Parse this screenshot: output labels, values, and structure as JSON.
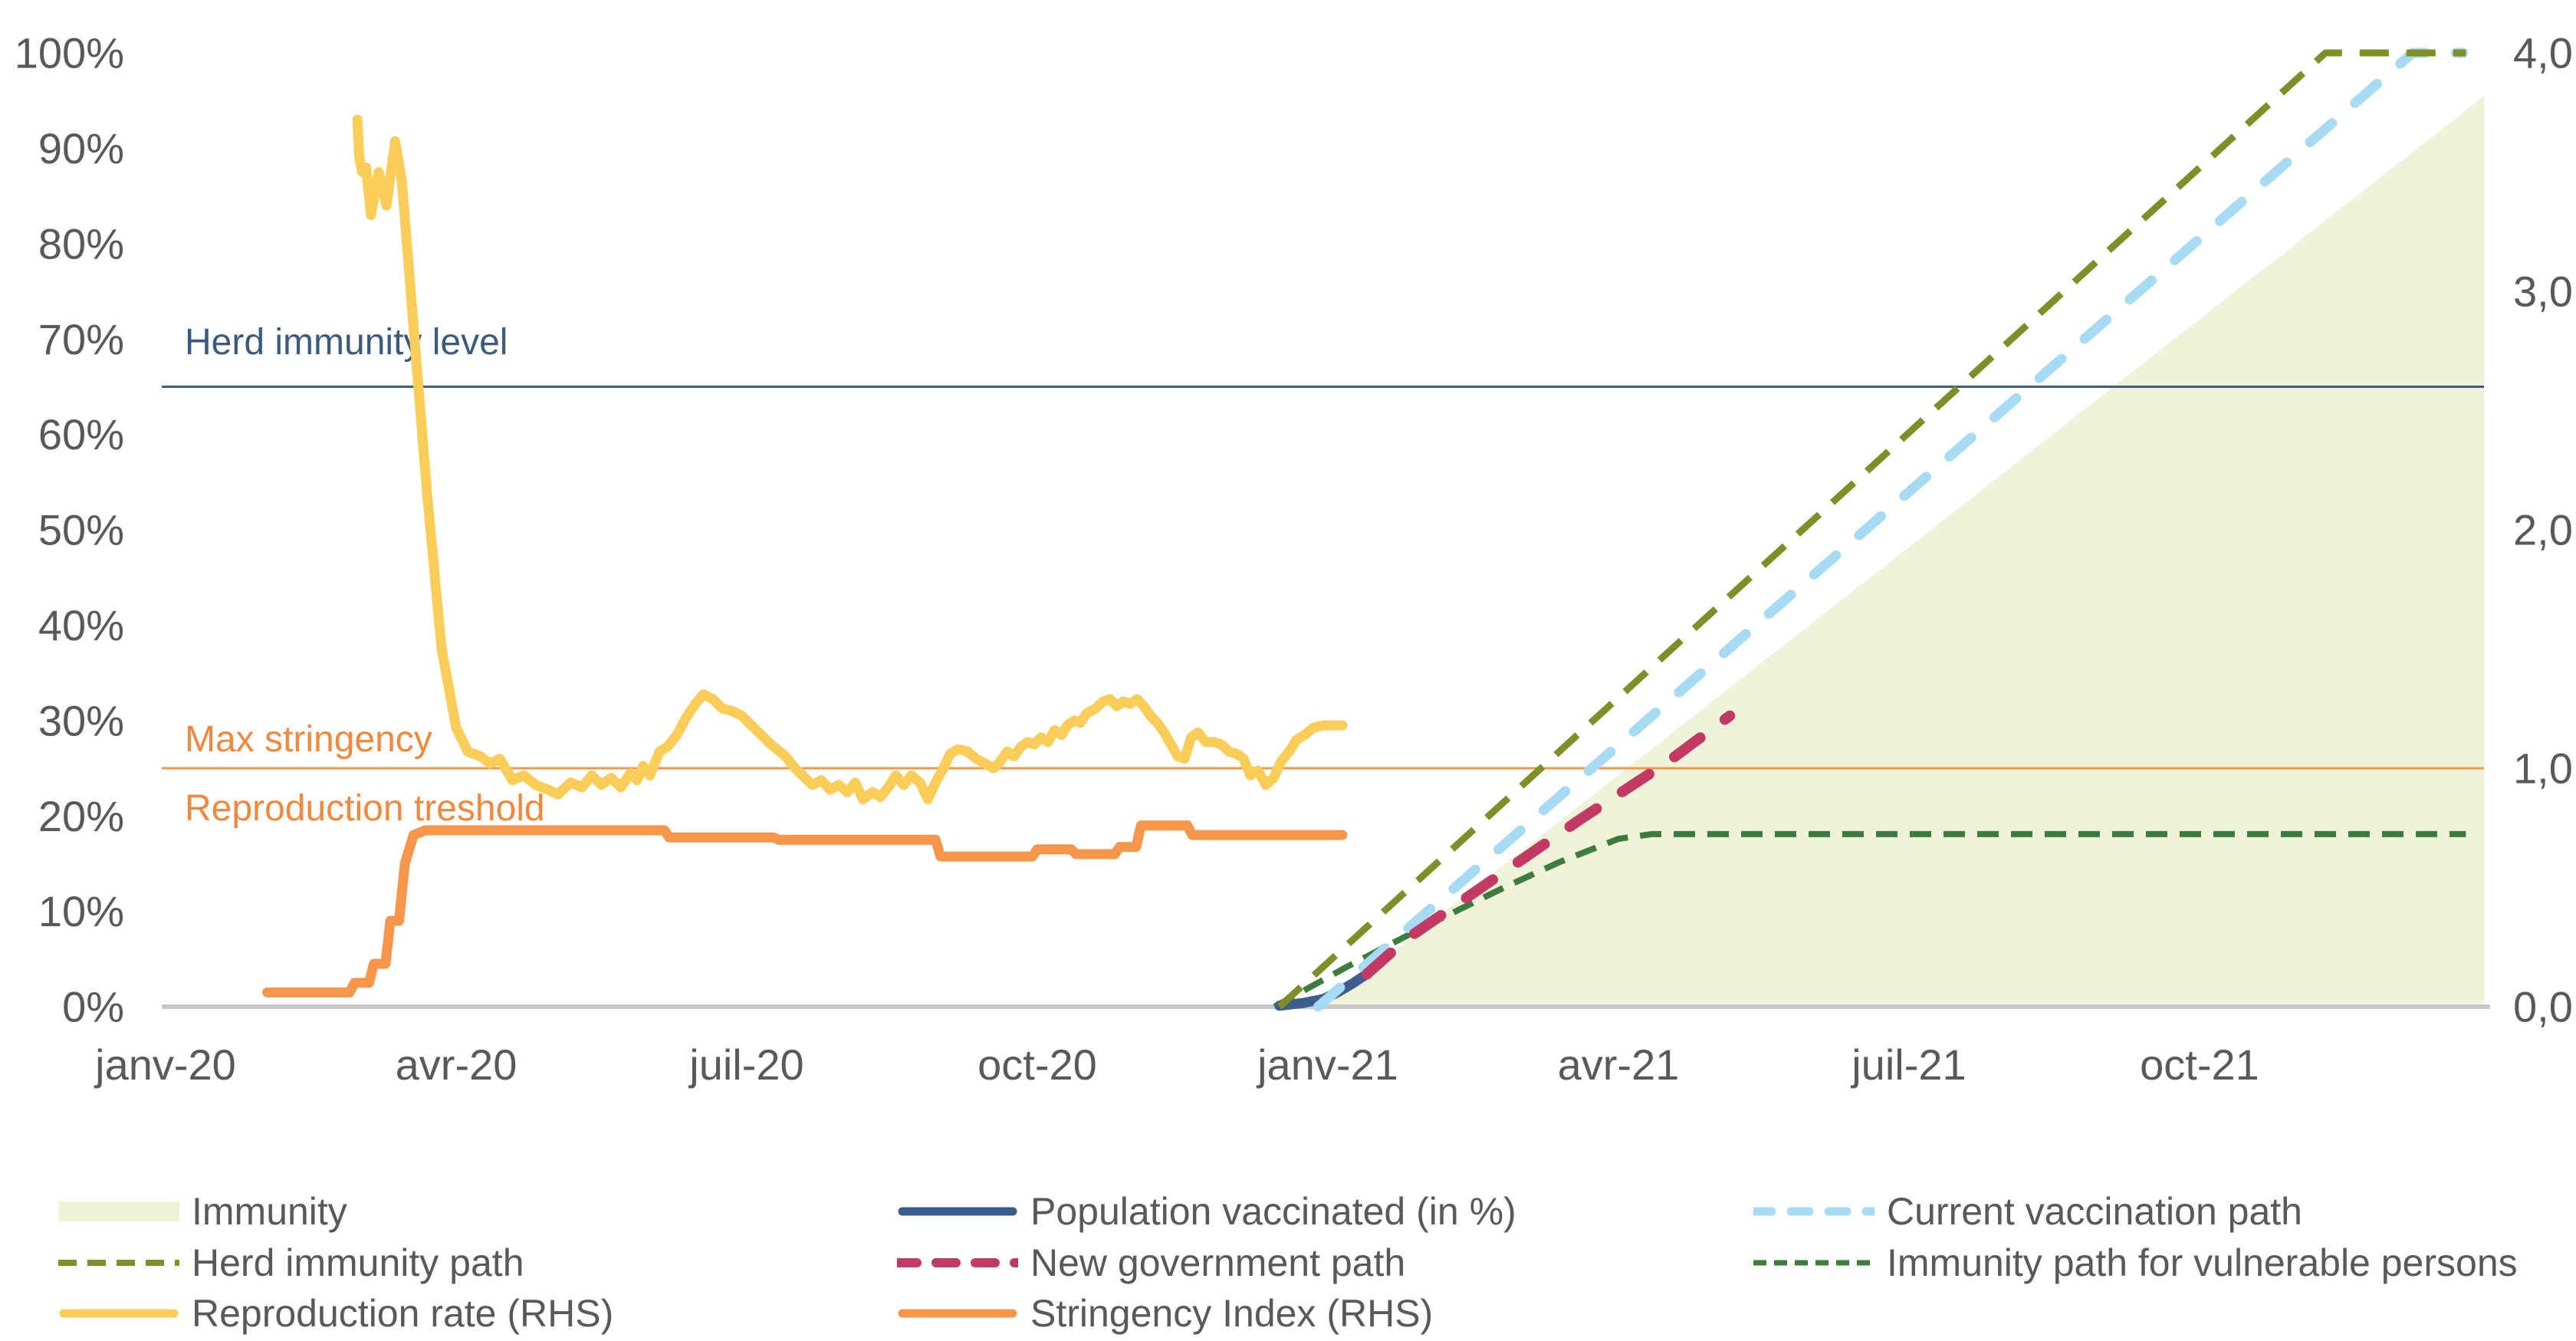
{
  "chart_data": {
    "type": "line",
    "title": "",
    "x_axis": {
      "labels": [
        "janv-20",
        "avr-20",
        "juil-20",
        "oct-20",
        "janv-21",
        "avr-21",
        "juil-21",
        "oct-21"
      ],
      "tick_months": [
        0,
        3,
        6,
        9,
        12,
        15,
        18,
        21
      ],
      "range_months": [
        0,
        24
      ]
    },
    "y_left": {
      "labels": [
        "0%",
        "10%",
        "20%",
        "30%",
        "40%",
        "50%",
        "60%",
        "70%",
        "80%",
        "90%",
        "100%"
      ],
      "values": [
        0,
        10,
        20,
        30,
        40,
        50,
        60,
        70,
        80,
        90,
        100
      ],
      "range": [
        0,
        100
      ]
    },
    "y_right": {
      "labels": [
        "0,0",
        "1,0",
        "2,0",
        "3,0",
        "4,0"
      ],
      "values": [
        0,
        1,
        2,
        3,
        4
      ],
      "range": [
        0,
        4
      ]
    },
    "grid": "off",
    "legend_position": "bottom",
    "axis_text_color": "#595959",
    "baseline_color": "#c8c8c8",
    "reference_lines": [
      {
        "id": "herd-level",
        "axis": "left",
        "value": 65,
        "color": "#3a5a7e",
        "width": 3
      },
      {
        "id": "threshold",
        "axis": "right",
        "value": 1.0,
        "color": "#f6964b",
        "width": 3
      }
    ],
    "annotations": [
      {
        "id": "herd-level-label",
        "text": "Herd immunity level",
        "color": "#3a5a7e"
      },
      {
        "id": "max-stringency-label",
        "text": "Max stringency",
        "color": "#f0883e"
      },
      {
        "id": "reproduction-threshold-label",
        "text": "Reproduction treshold",
        "color": "#f0883e"
      }
    ],
    "series": [
      {
        "id": "immunity",
        "name": "Immunity",
        "type": "area",
        "axis": "left",
        "color": "#f0f3d9",
        "points": [
          [
            11.95,
            0
          ],
          [
            23.94,
            95.5
          ]
        ]
      },
      {
        "id": "vulnerable_path",
        "name": "Immunity path for vulnerable persons",
        "type": "line",
        "axis": "left",
        "color": "#3d7c3d",
        "width": 8,
        "dash": [
          28,
          16
        ],
        "linecap": "butt",
        "points": [
          [
            11.45,
            0
          ],
          [
            12.2,
            4.2
          ],
          [
            13.0,
            8.4
          ],
          [
            13.8,
            12.4
          ],
          [
            14.4,
            15.2
          ],
          [
            15.0,
            17.6
          ],
          [
            15.35,
            18.1
          ],
          [
            23.75,
            18.1
          ]
        ]
      },
      {
        "id": "pop_vaccinated",
        "name": "Population vaccinated (in %)",
        "type": "line",
        "axis": "left",
        "color": "#3d5e8c",
        "width": 13,
        "dash": null,
        "linecap": "round",
        "points": [
          [
            11.5,
            0.1
          ],
          [
            11.75,
            0.4
          ],
          [
            11.95,
            0.8
          ],
          [
            12.1,
            1.5
          ],
          [
            12.25,
            2.4
          ],
          [
            12.4,
            3.4
          ]
        ]
      },
      {
        "id": "current_path",
        "name": "Current vaccination path",
        "type": "line",
        "axis": "left",
        "color": "#a7daf5",
        "width": 13,
        "dash": [
          38,
          40
        ],
        "linecap": "round",
        "points": [
          [
            11.9,
            0
          ],
          [
            23.2,
            100
          ],
          [
            23.72,
            100
          ]
        ]
      },
      {
        "id": "gov_path",
        "name": "New government path",
        "type": "line",
        "axis": "left",
        "color": "#c23a64",
        "width": 14,
        "dash": [
          42,
          40
        ],
        "linecap": "round",
        "points": [
          [
            12.4,
            3.4
          ],
          [
            12.8,
            7.0
          ],
          [
            13.6,
            12.6
          ],
          [
            14.6,
            19.6
          ],
          [
            15.5,
            25.6
          ],
          [
            16.15,
            30.5
          ]
        ]
      },
      {
        "id": "herd_path",
        "name": "Herd immunity path",
        "type": "line",
        "axis": "left",
        "color": "#7f8e26",
        "width": 9,
        "dash": [
          38,
          23
        ],
        "linecap": "butt",
        "points": [
          [
            11.5,
            0
          ],
          [
            22.3,
            100
          ],
          [
            23.75,
            100
          ]
        ]
      },
      {
        "id": "stringency",
        "name": "Stringency Index (RHS)",
        "type": "line",
        "axis": "right",
        "color": "#f6964b",
        "width": 13,
        "dash": null,
        "linecap": "round",
        "points": [
          [
            1.05,
            0.06
          ],
          [
            1.9,
            0.06
          ],
          [
            1.95,
            0.1
          ],
          [
            2.1,
            0.1
          ],
          [
            2.15,
            0.18
          ],
          [
            2.27,
            0.18
          ],
          [
            2.32,
            0.36
          ],
          [
            2.41,
            0.36
          ],
          [
            2.47,
            0.6
          ],
          [
            2.56,
            0.72
          ],
          [
            2.68,
            0.74
          ],
          [
            5.15,
            0.74
          ],
          [
            5.2,
            0.71
          ],
          [
            6.28,
            0.71
          ],
          [
            6.33,
            0.7
          ],
          [
            7.95,
            0.7
          ],
          [
            8.0,
            0.63
          ],
          [
            8.95,
            0.63
          ],
          [
            9.0,
            0.66
          ],
          [
            9.35,
            0.66
          ],
          [
            9.4,
            0.64
          ],
          [
            9.8,
            0.64
          ],
          [
            9.85,
            0.67
          ],
          [
            10.02,
            0.67
          ],
          [
            10.07,
            0.76
          ],
          [
            10.55,
            0.76
          ],
          [
            10.6,
            0.72
          ],
          [
            12.15,
            0.72
          ]
        ]
      },
      {
        "id": "reproduction",
        "name": "Reproduction rate (RHS)",
        "type": "line",
        "axis": "right",
        "color": "#facd59",
        "width": 13,
        "dash": null,
        "linecap": "round",
        "points": [
          [
            1.98,
            3.72
          ],
          [
            2.0,
            3.56
          ],
          [
            2.03,
            3.5
          ],
          [
            2.07,
            3.52
          ],
          [
            2.12,
            3.32
          ],
          [
            2.2,
            3.5
          ],
          [
            2.28,
            3.36
          ],
          [
            2.37,
            3.63
          ],
          [
            2.44,
            3.46
          ],
          [
            2.55,
            2.9
          ],
          [
            2.7,
            2.15
          ],
          [
            2.85,
            1.5
          ],
          [
            3.0,
            1.17
          ],
          [
            3.12,
            1.07
          ],
          [
            3.25,
            1.05
          ],
          [
            3.35,
            1.02
          ],
          [
            3.45,
            1.04
          ],
          [
            3.58,
            0.95
          ],
          [
            3.7,
            0.97
          ],
          [
            3.82,
            0.93
          ],
          [
            3.95,
            0.91
          ],
          [
            4.05,
            0.89
          ],
          [
            4.18,
            0.94
          ],
          [
            4.3,
            0.92
          ],
          [
            4.4,
            0.97
          ],
          [
            4.5,
            0.93
          ],
          [
            4.6,
            0.96
          ],
          [
            4.7,
            0.92
          ],
          [
            4.8,
            0.98
          ],
          [
            4.87,
            0.95
          ],
          [
            4.93,
            1.01
          ],
          [
            5.0,
            0.97
          ],
          [
            5.1,
            1.07
          ],
          [
            5.18,
            1.09
          ],
          [
            5.28,
            1.14
          ],
          [
            5.37,
            1.21
          ],
          [
            5.47,
            1.27
          ],
          [
            5.55,
            1.31
          ],
          [
            5.65,
            1.29
          ],
          [
            5.75,
            1.25
          ],
          [
            5.85,
            1.24
          ],
          [
            5.95,
            1.22
          ],
          [
            6.1,
            1.16
          ],
          [
            6.25,
            1.1
          ],
          [
            6.4,
            1.05
          ],
          [
            6.5,
            1.0
          ],
          [
            6.6,
            0.96
          ],
          [
            6.68,
            0.93
          ],
          [
            6.77,
            0.95
          ],
          [
            6.86,
            0.91
          ],
          [
            6.95,
            0.93
          ],
          [
            7.04,
            0.9
          ],
          [
            7.12,
            0.94
          ],
          [
            7.2,
            0.87
          ],
          [
            7.3,
            0.9
          ],
          [
            7.38,
            0.88
          ],
          [
            7.46,
            0.92
          ],
          [
            7.54,
            0.97
          ],
          [
            7.62,
            0.93
          ],
          [
            7.7,
            0.97
          ],
          [
            7.79,
            0.94
          ],
          [
            7.87,
            0.87
          ],
          [
            7.95,
            0.94
          ],
          [
            8.03,
            1.0
          ],
          [
            8.1,
            1.06
          ],
          [
            8.18,
            1.08
          ],
          [
            8.28,
            1.07
          ],
          [
            8.37,
            1.04
          ],
          [
            8.46,
            1.02
          ],
          [
            8.55,
            1.0
          ],
          [
            8.62,
            1.03
          ],
          [
            8.69,
            1.07
          ],
          [
            8.76,
            1.05
          ],
          [
            8.83,
            1.09
          ],
          [
            8.9,
            1.11
          ],
          [
            8.97,
            1.1
          ],
          [
            9.04,
            1.13
          ],
          [
            9.11,
            1.11
          ],
          [
            9.18,
            1.16
          ],
          [
            9.25,
            1.14
          ],
          [
            9.31,
            1.18
          ],
          [
            9.38,
            1.2
          ],
          [
            9.44,
            1.19
          ],
          [
            9.51,
            1.23
          ],
          [
            9.6,
            1.25
          ],
          [
            9.68,
            1.28
          ],
          [
            9.75,
            1.29
          ],
          [
            9.82,
            1.26
          ],
          [
            9.89,
            1.28
          ],
          [
            9.96,
            1.27
          ],
          [
            10.03,
            1.29
          ],
          [
            10.1,
            1.26
          ],
          [
            10.17,
            1.22
          ],
          [
            10.24,
            1.19
          ],
          [
            10.31,
            1.15
          ],
          [
            10.38,
            1.1
          ],
          [
            10.45,
            1.05
          ],
          [
            10.52,
            1.04
          ],
          [
            10.59,
            1.13
          ],
          [
            10.66,
            1.15
          ],
          [
            10.74,
            1.11
          ],
          [
            10.82,
            1.11
          ],
          [
            10.9,
            1.1
          ],
          [
            10.98,
            1.07
          ],
          [
            11.06,
            1.06
          ],
          [
            11.13,
            1.04
          ],
          [
            11.2,
            0.97
          ],
          [
            11.28,
            0.99
          ],
          [
            11.36,
            0.93
          ],
          [
            11.44,
            0.96
          ],
          [
            11.52,
            1.03
          ],
          [
            11.6,
            1.07
          ],
          [
            11.68,
            1.12
          ],
          [
            11.76,
            1.14
          ],
          [
            11.85,
            1.17
          ],
          [
            11.95,
            1.18
          ],
          [
            12.15,
            1.18
          ]
        ]
      }
    ]
  },
  "legend": {
    "columns": [
      [
        "immunity",
        "herd_path",
        "reproduction"
      ],
      [
        "pop_vaccinated",
        "gov_path",
        "stringency"
      ],
      [
        "current_path",
        "vulnerable_path"
      ]
    ]
  }
}
